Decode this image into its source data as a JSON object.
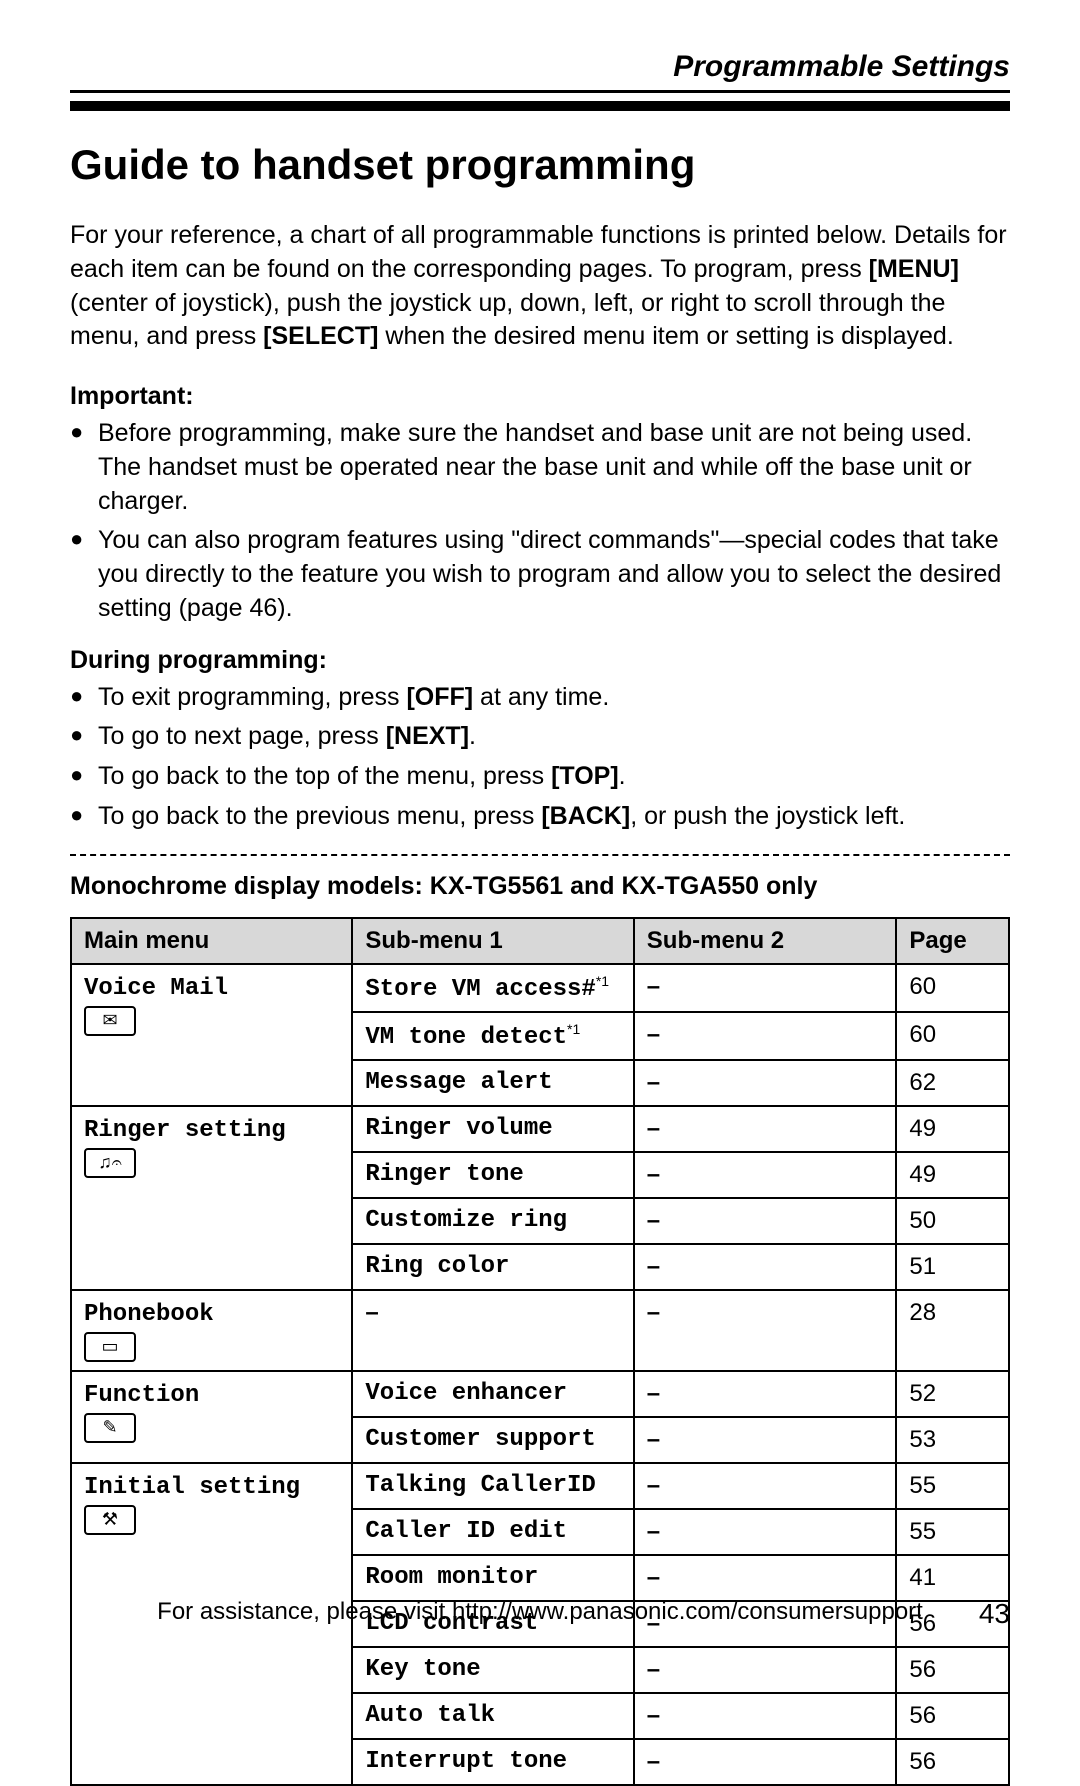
{
  "header": {
    "section_title": "Programmable Settings"
  },
  "title": "Guide to handset programming",
  "intro": {
    "p1_a": "For your reference, a chart of all programmable functions is printed below. Details for each item can be found on the corresponding pages. To program, press ",
    "p1_menu": "[MENU]",
    "p1_b": " (center of joystick), push the joystick up, down, left, or right to scroll through the menu, and press ",
    "p1_select": "[SELECT]",
    "p1_c": " when the desired menu item or setting is displayed."
  },
  "important": {
    "label": "Important:",
    "items": [
      "Before programming, make sure the handset and base unit are not being used. The handset must be operated near the base unit and while off the base unit or charger.",
      "You can also program features using \"direct commands\"—special codes that take you directly to the feature you wish to program and allow you to select the desired setting (page 46)."
    ]
  },
  "during": {
    "label": "During programming:",
    "items": [
      {
        "pre": "To exit programming, press ",
        "key": "[OFF]",
        "post": " at any time."
      },
      {
        "pre": "To go to next page, press ",
        "key": "[NEXT]",
        "post": "."
      },
      {
        "pre": "To go back to the top of the menu, press ",
        "key": "[TOP]",
        "post": "."
      },
      {
        "pre": "To go back to the previous menu, press ",
        "key": "[BACK]",
        "post": ", or push the joystick left."
      }
    ]
  },
  "table": {
    "caption": "Monochrome display models: KX-TG5561 and KX-TGA550 only",
    "headers": {
      "c1": "Main menu",
      "c2": "Sub-menu 1",
      "c3": "Sub-menu 2",
      "c4": "Page"
    },
    "groups": [
      {
        "main": "Voice Mail",
        "icon": "✉",
        "rows": [
          {
            "s1": "Store VM access#",
            "note": "*1",
            "s2": "–",
            "page": "60"
          },
          {
            "s1": "VM tone detect",
            "note": "*1",
            "s2": "–",
            "page": "60"
          },
          {
            "s1": "Message alert",
            "note": "",
            "s2": "–",
            "page": "62"
          }
        ]
      },
      {
        "main": "Ringer setting",
        "icon": "♫𝄐",
        "rows": [
          {
            "s1": "Ringer volume",
            "note": "",
            "s2": "–",
            "page": "49"
          },
          {
            "s1": "Ringer tone",
            "note": "",
            "s2": "–",
            "page": "49"
          },
          {
            "s1": "Customize ring",
            "note": "",
            "s2": "–",
            "page": "50"
          },
          {
            "s1": "Ring color",
            "note": "",
            "s2": "–",
            "page": "51"
          }
        ]
      },
      {
        "main": "Phonebook",
        "icon": "▭",
        "rows": [
          {
            "s1": "–",
            "note": "",
            "s2": "–",
            "page": "28",
            "s1_center": true
          }
        ]
      },
      {
        "main": "Function",
        "icon": "✎",
        "rows": [
          {
            "s1": "Voice enhancer",
            "note": "",
            "s2": "–",
            "page": "52"
          },
          {
            "s1": "Customer support",
            "note": "",
            "s2": "–",
            "page": "53"
          }
        ]
      },
      {
        "main": "Initial setting",
        "icon": "⚒",
        "rows": [
          {
            "s1": "Talking CallerID",
            "note": "",
            "s2": "–",
            "page": "55"
          },
          {
            "s1": "Caller ID edit",
            "note": "",
            "s2": "–",
            "page": "55"
          },
          {
            "s1": "Room monitor",
            "note": "",
            "s2": "–",
            "page": "41"
          },
          {
            "s1": "LCD contrast",
            "note": "",
            "s2": "–",
            "page": "56"
          },
          {
            "s1": "Key tone",
            "note": "",
            "s2": "–",
            "page": "56"
          },
          {
            "s1": "Auto talk",
            "note": "",
            "s2": "–",
            "page": "56"
          },
          {
            "s1": "Interrupt tone",
            "note": "",
            "s2": "–",
            "page": "56"
          }
        ]
      }
    ]
  },
  "footer": {
    "text": "For assistance, please visit http://www.panasonic.com/consumersupport",
    "page_num": "43"
  },
  "style": {
    "section_title_fontsize": 30,
    "title_fontsize": 42,
    "body_fontsize": 25,
    "table_fontsize": 24,
    "header_bg": "#d8d8d8",
    "border_color": "#000000",
    "mono_font": "Courier New"
  }
}
